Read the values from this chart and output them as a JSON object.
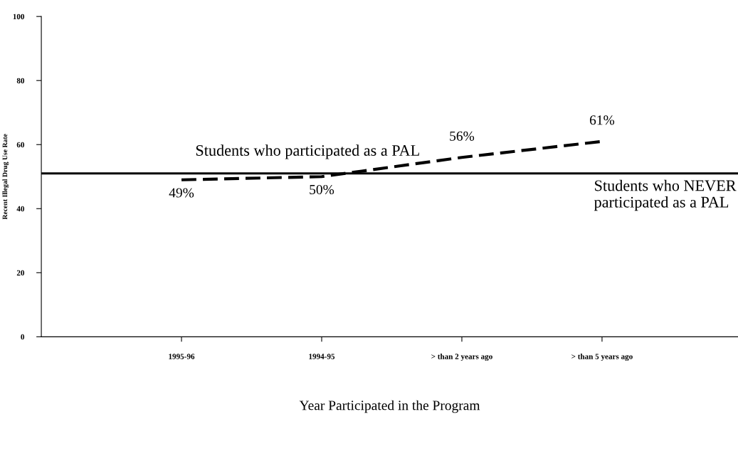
{
  "chart_data": {
    "type": "line",
    "xlabel": "Year Participated in the Program",
    "ylabel": "Recent Illegal Drug Use Rate",
    "categories": [
      "1995-96",
      "1994-95",
      "> than 2 years ago",
      "> than 5 years ago"
    ],
    "series": [
      {
        "name": "Students who participated as a PAL",
        "color": "#000000",
        "values": [
          49,
          50,
          56,
          61
        ],
        "value_labels": [
          "49%",
          "50%",
          "56%",
          "61%"
        ]
      }
    ],
    "ref_lines": [
      {
        "axis": "y",
        "value": 51,
        "label": "Students who NEVER participated as a PAL",
        "color": "#000000",
        "line_style": "solid"
      }
    ],
    "ylim": [
      0,
      100
    ],
    "yticks": [
      0,
      20,
      40,
      60,
      80,
      100
    ],
    "line_style": "dashed",
    "marker": "none",
    "grid": false,
    "legend": false
  }
}
